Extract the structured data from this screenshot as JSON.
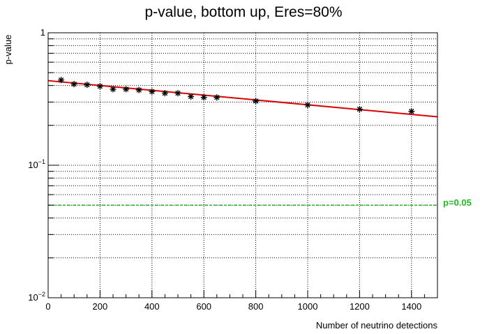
{
  "chart_data": {
    "type": "scatter",
    "title": "p-value, bottom up, Eres=80%",
    "xlabel": "Number of neutrino detections",
    "ylabel": "p-value",
    "xlim": [
      0,
      1500
    ],
    "ylim": [
      0.01,
      1
    ],
    "yscale": "log",
    "grid": true,
    "x_ticks": [
      0,
      200,
      400,
      600,
      800,
      1000,
      1200,
      1400
    ],
    "x_tick_labels": [
      "0",
      "200",
      "400",
      "600",
      "800",
      "1000",
      "1200",
      "1400"
    ],
    "y_tick_labels": [
      {
        "value": 1,
        "base": "1",
        "exp": ""
      },
      {
        "value": 0.1,
        "base": "10",
        "exp": "−1"
      },
      {
        "value": 0.01,
        "base": "10",
        "exp": "−2"
      }
    ],
    "series": [
      {
        "marker": "star",
        "color": "#000000",
        "x": [
          50,
          100,
          150,
          200,
          250,
          300,
          350,
          400,
          450,
          500,
          550,
          600,
          650,
          800,
          1000,
          1200,
          1400
        ],
        "y": [
          0.44,
          0.41,
          0.405,
          0.395,
          0.375,
          0.375,
          0.37,
          0.36,
          0.35,
          0.35,
          0.33,
          0.325,
          0.325,
          0.305,
          0.285,
          0.265,
          0.255
        ]
      }
    ],
    "fit_line": {
      "color": "#dd0000",
      "x": [
        0,
        1500
      ],
      "y": [
        0.435,
        0.232
      ]
    },
    "reference_line": {
      "y": 0.05,
      "label": "p=0.05",
      "color": "#22bb22",
      "style": "dashed"
    }
  }
}
